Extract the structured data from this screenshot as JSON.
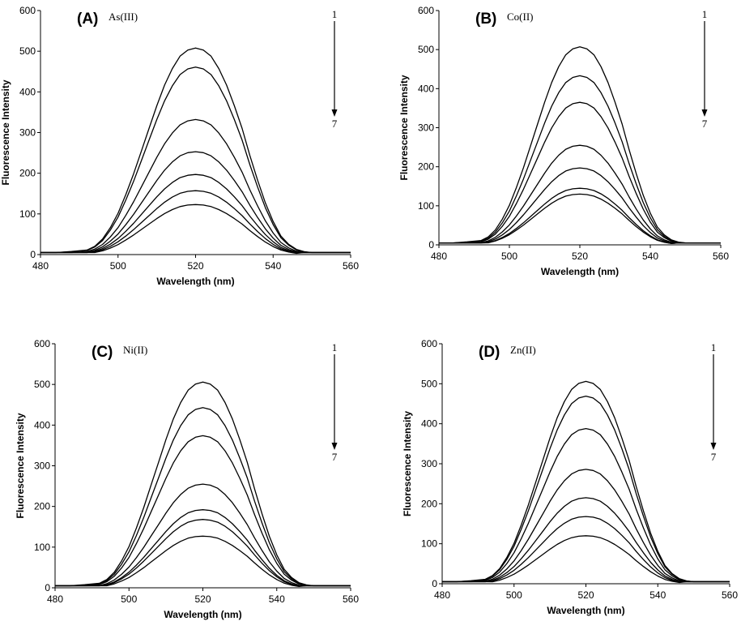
{
  "chart_data": [
    {
      "panel": "(A)",
      "ion": "As(III)",
      "type": "line",
      "xlabel": "Wavelength (nm)",
      "ylabel": "Fluorescence Intensity",
      "xlim": [
        480,
        560
      ],
      "ylim": [
        0,
        600
      ],
      "xticks": [
        480,
        500,
        520,
        540,
        560
      ],
      "yticks": [
        0,
        100,
        200,
        300,
        400,
        500,
        600
      ],
      "arrow": {
        "start": "1",
        "end": "7"
      },
      "peak_nm": 520,
      "series": [
        {
          "name": "1",
          "peak": 508
        },
        {
          "name": "2",
          "peak": 461
        },
        {
          "name": "3",
          "peak": 332
        },
        {
          "name": "4",
          "peak": 253
        },
        {
          "name": "5",
          "peak": 197
        },
        {
          "name": "6",
          "peak": 157
        },
        {
          "name": "7",
          "peak": 123
        }
      ]
    },
    {
      "panel": "(B)",
      "ion": "Co(II)",
      "type": "line",
      "xlabel": "Wavelength (nm)",
      "ylabel": "Fluorescence Intensity",
      "xlim": [
        480,
        560
      ],
      "ylim": [
        0,
        600
      ],
      "xticks": [
        480,
        500,
        520,
        540,
        560
      ],
      "yticks": [
        0,
        100,
        200,
        300,
        400,
        500,
        600
      ],
      "arrow": {
        "start": "1",
        "end": "7"
      },
      "peak_nm": 520,
      "series": [
        {
          "name": "1",
          "peak": 507
        },
        {
          "name": "2",
          "peak": 433
        },
        {
          "name": "3",
          "peak": 365
        },
        {
          "name": "4",
          "peak": 255
        },
        {
          "name": "5",
          "peak": 197
        },
        {
          "name": "6",
          "peak": 145
        },
        {
          "name": "7",
          "peak": 130
        }
      ]
    },
    {
      "panel": "(C)",
      "ion": "Ni(II)",
      "type": "line",
      "xlabel": "Wavelength (nm)",
      "ylabel": "Fluorescence Intensity",
      "xlim": [
        480,
        560
      ],
      "ylim": [
        0,
        600
      ],
      "xticks": [
        480,
        500,
        520,
        540,
        560
      ],
      "yticks": [
        0,
        100,
        200,
        300,
        400,
        500,
        600
      ],
      "arrow": {
        "start": "1",
        "end": "7"
      },
      "peak_nm": 520,
      "series": [
        {
          "name": "1",
          "peak": 506
        },
        {
          "name": "2",
          "peak": 443
        },
        {
          "name": "3",
          "peak": 374
        },
        {
          "name": "4",
          "peak": 255
        },
        {
          "name": "5",
          "peak": 192
        },
        {
          "name": "6",
          "peak": 168
        },
        {
          "name": "7",
          "peak": 127
        }
      ]
    },
    {
      "panel": "(D)",
      "ion": "Zn(II)",
      "type": "line",
      "xlabel": "Wavelength (nm)",
      "ylabel": "Fluorescence Intensity",
      "xlim": [
        480,
        560
      ],
      "ylim": [
        0,
        600
      ],
      "xticks": [
        480,
        500,
        520,
        540,
        560
      ],
      "yticks": [
        0,
        100,
        200,
        300,
        400,
        500,
        600
      ],
      "arrow": {
        "start": "1",
        "end": "7"
      },
      "peak_nm": 520,
      "series": [
        {
          "name": "1",
          "peak": 506
        },
        {
          "name": "2",
          "peak": 469
        },
        {
          "name": "3",
          "peak": 388
        },
        {
          "name": "4",
          "peak": 286
        },
        {
          "name": "5",
          "peak": 215
        },
        {
          "name": "6",
          "peak": 168
        },
        {
          "name": "7",
          "peak": 120
        }
      ]
    }
  ]
}
